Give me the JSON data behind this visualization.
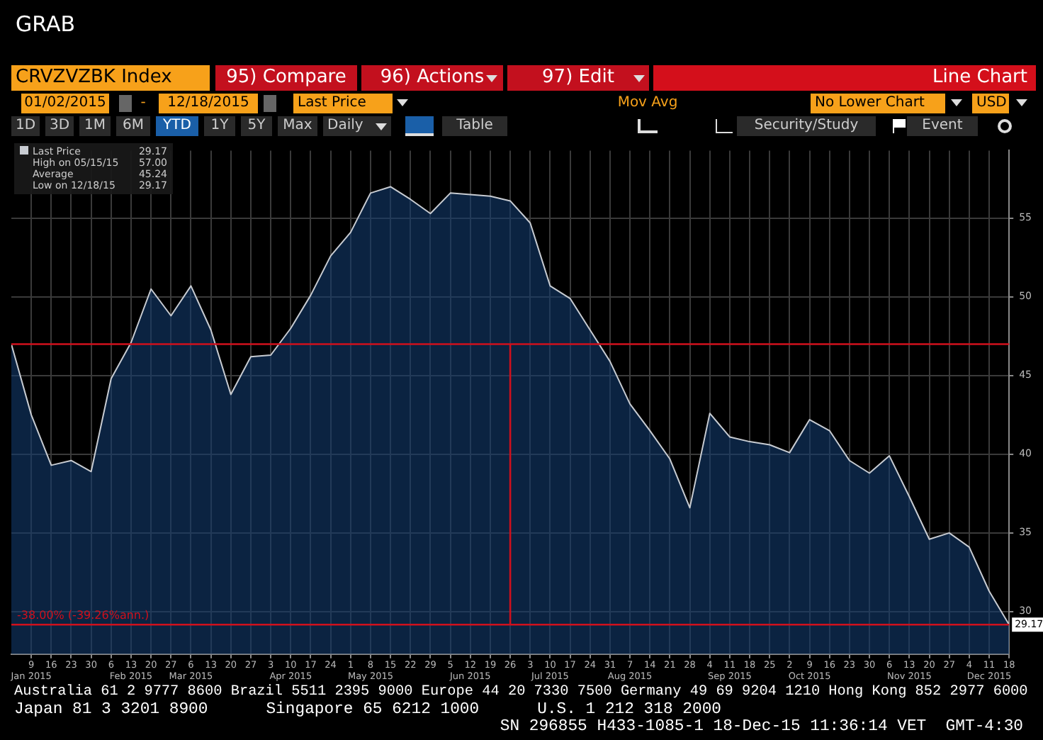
{
  "chart_data": {
    "type": "area",
    "title": "CRVZVZBK Index",
    "x": [
      "2015-01-02",
      "2015-01-09",
      "2015-01-16",
      "2015-01-23",
      "2015-01-30",
      "2015-02-06",
      "2015-02-13",
      "2015-02-20",
      "2015-02-27",
      "2015-03-06",
      "2015-03-13",
      "2015-03-20",
      "2015-03-27",
      "2015-04-03",
      "2015-04-10",
      "2015-04-17",
      "2015-04-24",
      "2015-05-01",
      "2015-05-08",
      "2015-05-15",
      "2015-05-22",
      "2015-05-29",
      "2015-06-05",
      "2015-06-12",
      "2015-06-19",
      "2015-06-26",
      "2015-07-03",
      "2015-07-10",
      "2015-07-17",
      "2015-07-24",
      "2015-07-31",
      "2015-08-07",
      "2015-08-14",
      "2015-08-21",
      "2015-08-28",
      "2015-09-04",
      "2015-09-11",
      "2015-09-18",
      "2015-09-25",
      "2015-10-02",
      "2015-10-09",
      "2015-10-16",
      "2015-10-23",
      "2015-10-30",
      "2015-11-06",
      "2015-11-13",
      "2015-11-20",
      "2015-11-27",
      "2015-12-04",
      "2015-12-11",
      "2015-12-18"
    ],
    "series": [
      {
        "name": "Last Price",
        "color": "#c8ccd2",
        "values": [
          47.0,
          42.5,
          39.3,
          39.6,
          38.9,
          44.8,
          47.1,
          50.5,
          48.8,
          50.7,
          47.9,
          43.8,
          46.2,
          46.3,
          48.0,
          50.1,
          52.6,
          54.1,
          56.6,
          57.0,
          56.2,
          55.3,
          56.6,
          56.5,
          56.4,
          56.1,
          54.7,
          50.7,
          49.9,
          47.9,
          45.9,
          43.2,
          41.5,
          39.7,
          36.6,
          42.6,
          41.1,
          40.8,
          40.6,
          40.1,
          42.2,
          41.5,
          39.6,
          38.8,
          39.9,
          37.3,
          34.6,
          35.0,
          34.1,
          31.3,
          29.17
        ],
        "value_labels": [
          null,
          null,
          null,
          null,
          null,
          null,
          null,
          null,
          null,
          null,
          null,
          null,
          null,
          null,
          null,
          null,
          null,
          null,
          null,
          null,
          null,
          null,
          null,
          null,
          null,
          null,
          null,
          null,
          null,
          null,
          null,
          null,
          null,
          null,
          null,
          null,
          null,
          null,
          null,
          null,
          null,
          null,
          null,
          null,
          null,
          null,
          null,
          null,
          null,
          null,
          "29.17"
        ]
      }
    ],
    "xlim": [
      "2015-01-02",
      "2015-12-18"
    ],
    "xticks": [
      {
        "value": "2015-01-09",
        "label": "9\nJan 2015"
      },
      {
        "value": "2015-01-16",
        "label": "16"
      },
      {
        "value": "2015-01-23",
        "label": "23"
      },
      {
        "value": "2015-01-30",
        "label": "30"
      },
      {
        "value": "2015-02-06",
        "label": "6"
      },
      {
        "value": "2015-02-13",
        "label": "13\nFeb 2015"
      },
      {
        "value": "2015-02-20",
        "label": "20"
      },
      {
        "value": "2015-02-27",
        "label": "27"
      },
      {
        "value": "2015-03-06",
        "label": "6\nMar 2015"
      },
      {
        "value": "2015-03-13",
        "label": "13"
      },
      {
        "value": "2015-03-20",
        "label": "20"
      },
      {
        "value": "2015-03-27",
        "label": "27"
      },
      {
        "value": "2015-04-03",
        "label": "3"
      },
      {
        "value": "2015-04-10",
        "label": "10\nApr 2015"
      },
      {
        "value": "2015-04-17",
        "label": "17"
      },
      {
        "value": "2015-04-24",
        "label": "24"
      },
      {
        "value": "2015-05-01",
        "label": "1"
      },
      {
        "value": "2015-05-08",
        "label": "8\nMay 2015"
      },
      {
        "value": "2015-05-15",
        "label": "15"
      },
      {
        "value": "2015-05-22",
        "label": "22"
      },
      {
        "value": "2015-05-29",
        "label": "29"
      },
      {
        "value": "2015-06-05",
        "label": "5"
      },
      {
        "value": "2015-06-12",
        "label": "12\nJun 2015"
      },
      {
        "value": "2015-06-19",
        "label": "19"
      },
      {
        "value": "2015-06-26",
        "label": "26"
      },
      {
        "value": "2015-07-03",
        "label": "3"
      },
      {
        "value": "2015-07-10",
        "label": "10\nJul 2015"
      },
      {
        "value": "2015-07-17",
        "label": "17"
      },
      {
        "value": "2015-07-24",
        "label": "24"
      },
      {
        "value": "2015-07-31",
        "label": "31"
      },
      {
        "value": "2015-08-07",
        "label": "7\nAug 2015"
      },
      {
        "value": "2015-08-14",
        "label": "14"
      },
      {
        "value": "2015-08-21",
        "label": "21"
      },
      {
        "value": "2015-08-28",
        "label": "28"
      },
      {
        "value": "2015-09-04",
        "label": "4"
      },
      {
        "value": "2015-09-11",
        "label": "11\nSep 2015"
      },
      {
        "value": "2015-09-18",
        "label": "18"
      },
      {
        "value": "2015-09-25",
        "label": "25"
      },
      {
        "value": "2015-10-02",
        "label": "2"
      },
      {
        "value": "2015-10-09",
        "label": "9\nOct 2015"
      },
      {
        "value": "2015-10-16",
        "label": "16"
      },
      {
        "value": "2015-10-23",
        "label": "23"
      },
      {
        "value": "2015-10-30",
        "label": "30"
      },
      {
        "value": "2015-11-06",
        "label": "6"
      },
      {
        "value": "2015-11-13",
        "label": "13\nNov 2015"
      },
      {
        "value": "2015-11-20",
        "label": "20"
      },
      {
        "value": "2015-11-27",
        "label": "27"
      },
      {
        "value": "2015-12-04",
        "label": "4"
      },
      {
        "value": "2015-12-11",
        "label": "11\nDec 2015"
      },
      {
        "value": "2015-12-18",
        "label": "18"
      }
    ],
    "ylim": [
      27.3,
      59.3
    ],
    "yticks": [
      30,
      35,
      40,
      45,
      50,
      55
    ],
    "grid": true,
    "legend": "top left",
    "marker": "none",
    "ref_lines": [
      {
        "axis": "y",
        "value": 47.0,
        "color": "#d0101c"
      },
      {
        "axis": "y",
        "value": 29.17,
        "color": "#d0101c"
      },
      {
        "axis": "x",
        "value": "2015-06-26",
        "color": "#d0101c"
      }
    ],
    "annotations": [
      "GRAB",
      "95) Compare",
      "96) Actions",
      "97) Edit",
      "Line Chart",
      "01/02/2015",
      "-",
      "12/18/2015",
      "Last Price",
      "Mov Avg",
      "No Lower Chart",
      "USD",
      "1D",
      "3D",
      "1M",
      "6M",
      "YTD",
      "1Y",
      "5Y",
      "Max",
      "Daily",
      "Table",
      "Security/Study",
      "Event",
      "29.17",
      "High on 05/15/15",
      "57.00",
      "Average",
      "45.24",
      "Low on 12/18/15",
      "29.17",
      "-38.00% (-39.26%ann.)",
      "Australia 61 2 9777 8600 Brazil 5511 2395 9000 Europe 44 20 7330 7500 Germany 49 69 9204 1210 Hong Kong 852 2977 6000",
      "Japan 81 3 3201 8900      Singapore 65 6212 1000      U.S. 1 212 318 2000",
      "SN 296855 H433-1085-1 18-Dec-15 11:36:14 VET  GMT-4:30"
    ]
  }
}
